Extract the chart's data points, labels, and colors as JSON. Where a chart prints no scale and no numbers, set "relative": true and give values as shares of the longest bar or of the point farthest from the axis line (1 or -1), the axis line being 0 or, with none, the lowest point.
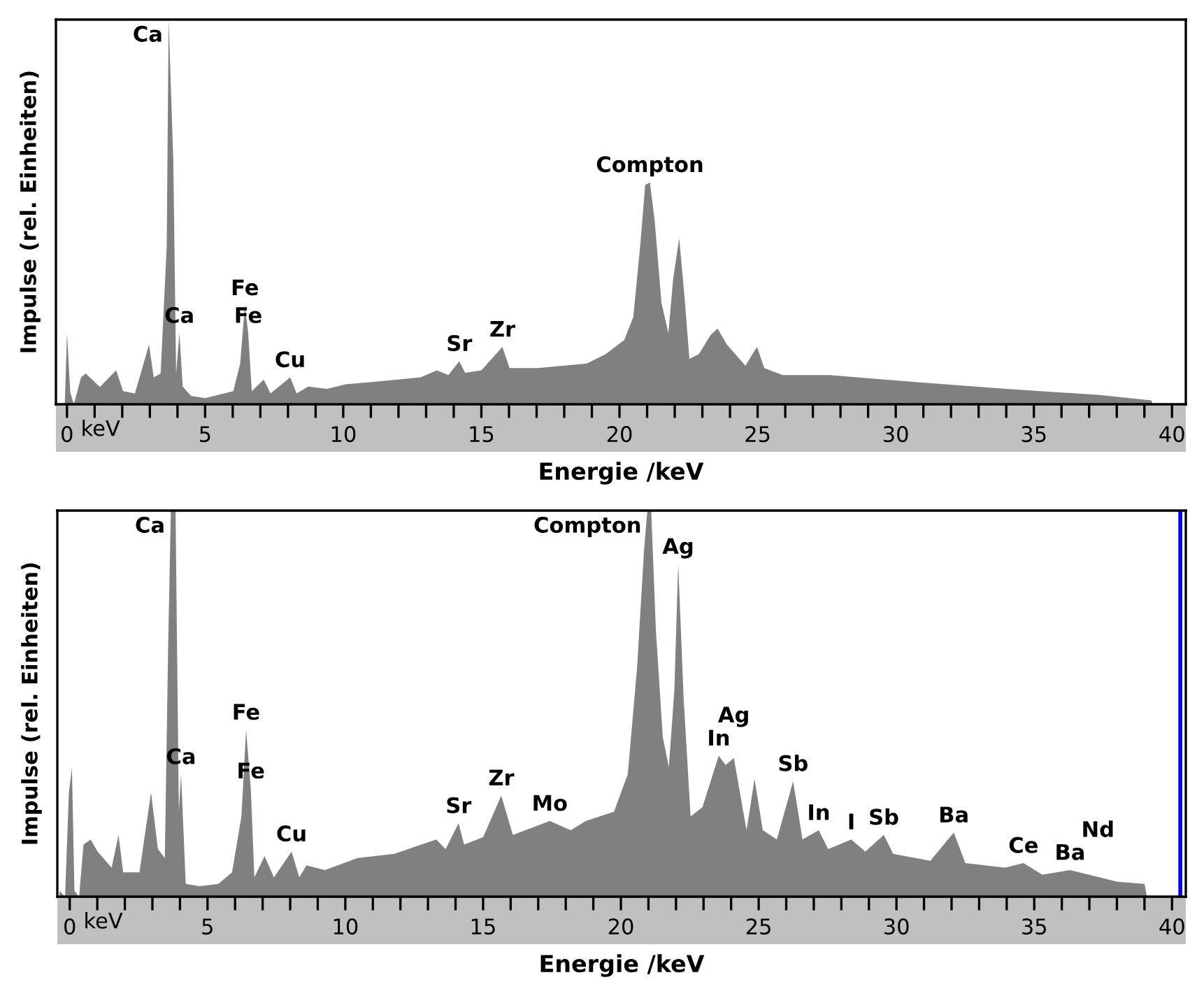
{
  "chart_data": [
    {
      "type": "area",
      "relative": true,
      "xlabel": "Energie /keV",
      "ylabel": "Impulse (rel. Einheiten)",
      "xlim": [
        -0.4,
        40.5
      ],
      "xticks": [
        0,
        {
          "value": 1,
          "label": null
        },
        {
          "value": 2,
          "label": null
        },
        {
          "value": 3,
          "label": null
        },
        {
          "value": 4,
          "label": null
        },
        5,
        {
          "value": 6,
          "label": null
        },
        {
          "value": 7,
          "label": null
        },
        {
          "value": 8,
          "label": null
        },
        {
          "value": 9,
          "label": null
        },
        10,
        {
          "value": 11,
          "label": null
        },
        {
          "value": 12,
          "label": null
        },
        {
          "value": 13,
          "label": null
        },
        {
          "value": 14,
          "label": null
        },
        15,
        {
          "value": 16,
          "label": null
        },
        {
          "value": 17,
          "label": null
        },
        {
          "value": 18,
          "label": null
        },
        {
          "value": 19,
          "label": null
        },
        20,
        {
          "value": 21,
          "label": null
        },
        {
          "value": 22,
          "label": null
        },
        {
          "value": 23,
          "label": null
        },
        {
          "value": 24,
          "label": null
        },
        25,
        {
          "value": 26,
          "label": null
        },
        {
          "value": 27,
          "label": null
        },
        {
          "value": 28,
          "label": null
        },
        {
          "value": 29,
          "label": null
        },
        30,
        {
          "value": 31,
          "label": null
        },
        {
          "value": 32,
          "label": null
        },
        {
          "value": 33,
          "label": null
        },
        {
          "value": 34,
          "label": null
        },
        35,
        {
          "value": 36,
          "label": null
        },
        {
          "value": 37,
          "label": null
        },
        {
          "value": 38,
          "label": null
        },
        {
          "value": 39,
          "label": null
        },
        40
      ],
      "series": [
        {
          "color": "#808080",
          "x": [
            -0.34,
            -0.08,
            0,
            0.12,
            0.25,
            0.51,
            0.68,
            1.19,
            1.78,
            2.03,
            2.46,
            2.97,
            3.14,
            3.39,
            3.61,
            3.68,
            3.85,
            3.95,
            4.07,
            4.19,
            4.49,
            5.0,
            6.02,
            6.27,
            6.44,
            6.56,
            6.69,
            7.12,
            7.37,
            8.08,
            8.31,
            8.73,
            9.41,
            10.08,
            11.1,
            12.8,
            13.39,
            13.81,
            14.2,
            14.41,
            15.0,
            15.76,
            16.02,
            17.03,
            18.82,
            19.49,
            20.17,
            20.5,
            20.76,
            20.93,
            21.1,
            21.27,
            21.52,
            21.77,
            21.94,
            22.16,
            22.36,
            22.53,
            22.87,
            23.29,
            23.55,
            23.89,
            24.56,
            24.81,
            24.98,
            25.24,
            25.91,
            27.6,
            30.64,
            34.0,
            37.4,
            39.26,
            39.29
          ],
          "values": [
            0,
            0,
            0.185,
            0.03,
            0,
            0.07,
            0.08,
            0.045,
            0.088,
            0.034,
            0.028,
            0.155,
            0.07,
            0.08,
            0.41,
            1.0,
            0.63,
            0.08,
            0.185,
            0.046,
            0.022,
            0.016,
            0.034,
            0.106,
            0.257,
            0.185,
            0.034,
            0.064,
            0.028,
            0.07,
            0.028,
            0.046,
            0.04,
            0.052,
            0.058,
            0.07,
            0.088,
            0.076,
            0.112,
            0.082,
            0.088,
            0.149,
            0.094,
            0.094,
            0.106,
            0.13,
            0.167,
            0.227,
            0.42,
            0.57,
            0.577,
            0.48,
            0.263,
            0.185,
            0.324,
            0.432,
            0.275,
            0.118,
            0.13,
            0.179,
            0.197,
            0.155,
            0.1,
            0.13,
            0.149,
            0.094,
            0.076,
            0.076,
            0.058,
            0.04,
            0.024,
            0.01,
            0
          ]
        }
      ],
      "annotations": [
        {
          "text": "Ca",
          "x": 3.68,
          "y": 1.0
        },
        {
          "text": "Ca",
          "x": 4.07,
          "y": 0.185
        },
        {
          "text": "Fe",
          "x": 6.44,
          "y": 0.257
        },
        {
          "text": "Fe",
          "x": 6.56,
          "y": 0.185
        },
        {
          "text": "Cu",
          "x": 8.08,
          "y": 0.07
        },
        {
          "text": "Sr",
          "x": 14.2,
          "y": 0.112
        },
        {
          "text": "Zr",
          "x": 15.76,
          "y": 0.149
        },
        {
          "text": "Compton",
          "x": 21.1,
          "y": 0.577
        },
        "keV"
      ]
    },
    {
      "type": "area",
      "relative": true,
      "xlabel": "Energie /keV",
      "ylabel": "Impulse (rel. Einheiten)",
      "xlim": [
        -0.45,
        40.5
      ],
      "xticks": [
        0,
        {
          "value": 1,
          "label": null
        },
        {
          "value": 2,
          "label": null
        },
        {
          "value": 3,
          "label": null
        },
        {
          "value": 4,
          "label": null
        },
        5,
        {
          "value": 6,
          "label": null
        },
        {
          "value": 7,
          "label": null
        },
        {
          "value": 8,
          "label": null
        },
        {
          "value": 9,
          "label": null
        },
        10,
        {
          "value": 11,
          "label": null
        },
        {
          "value": 12,
          "label": null
        },
        {
          "value": 13,
          "label": null
        },
        {
          "value": 14,
          "label": null
        },
        15,
        {
          "value": 16,
          "label": null
        },
        {
          "value": 17,
          "label": null
        },
        {
          "value": 18,
          "label": null
        },
        {
          "value": 19,
          "label": null
        },
        20,
        {
          "value": 21,
          "label": null
        },
        {
          "value": 22,
          "label": null
        },
        {
          "value": 23,
          "label": null
        },
        {
          "value": 24,
          "label": null
        },
        25,
        {
          "value": 26,
          "label": null
        },
        {
          "value": 27,
          "label": null
        },
        {
          "value": 28,
          "label": null
        },
        {
          "value": 29,
          "label": null
        },
        30,
        {
          "value": 31,
          "label": null
        },
        {
          "value": 32,
          "label": null
        },
        {
          "value": 33,
          "label": null
        },
        {
          "value": 34,
          "label": null
        },
        35,
        {
          "value": 36,
          "label": null
        },
        {
          "value": 37,
          "label": null
        },
        {
          "value": 38,
          "label": null
        },
        {
          "value": 39,
          "label": null
        },
        40
      ],
      "ref_lines": [
        {
          "axis": "x",
          "value": 40.3,
          "label": null,
          "color": "#0000ff"
        }
      ],
      "series": [
        {
          "color": "#808080",
          "x": [
            -0.37,
            -0.17,
            -0.03,
            0.08,
            0.17,
            0.34,
            0.5,
            0.76,
            1.01,
            1.52,
            1.77,
            1.94,
            2.53,
            2.95,
            3.2,
            3.45,
            3.57,
            3.67,
            3.84,
            3.96,
            4.04,
            4.21,
            4.71,
            5.39,
            5.89,
            6.23,
            6.4,
            6.57,
            6.7,
            7.07,
            7.41,
            8.05,
            8.33,
            8.59,
            9.26,
            10.44,
            11.78,
            13.3,
            13.64,
            14.11,
            14.31,
            15.0,
            15.66,
            16.08,
            17.42,
            18.18,
            18.73,
            19.75,
            20.25,
            20.59,
            20.84,
            20.96,
            21.1,
            21.27,
            21.52,
            21.74,
            21.94,
            22.08,
            22.28,
            22.53,
            22.96,
            23.55,
            23.8,
            24.1,
            24.56,
            24.85,
            25.15,
            25.66,
            26.25,
            26.59,
            27.18,
            27.52,
            28.36,
            28.87,
            29.54,
            29.88,
            31.23,
            32.08,
            32.5,
            33.94,
            34.61,
            35.29,
            36.3,
            37.31,
            37.99,
            39.0,
            39.09
          ],
          "values": [
            0.015,
            0,
            0.27,
            0.335,
            0.015,
            0,
            0.135,
            0.148,
            0.117,
            0.075,
            0.16,
            0.063,
            0.063,
            0.27,
            0.123,
            0.1,
            0.643,
            1.0,
            1.0,
            0.22,
            0.317,
            0.033,
            0.027,
            0.033,
            0.063,
            0.208,
            0.432,
            0.28,
            0.05,
            0.105,
            0.05,
            0.117,
            0.05,
            0.081,
            0.069,
            0.1,
            0.111,
            0.148,
            0.123,
            0.19,
            0.135,
            0.154,
            0.262,
            0.16,
            0.196,
            0.172,
            0.196,
            0.22,
            0.317,
            0.595,
            0.897,
            1.0,
            1.0,
            0.69,
            0.414,
            0.335,
            0.534,
            0.861,
            0.51,
            0.208,
            0.232,
            0.365,
            0.341,
            0.359,
            0.172,
            0.305,
            0.172,
            0.148,
            0.299,
            0.148,
            0.172,
            0.123,
            0.148,
            0.117,
            0.16,
            0.111,
            0.093,
            0.166,
            0.087,
            0.075,
            0.087,
            0.057,
            0.069,
            0.051,
            0.039,
            0.033,
            0
          ]
        }
      ],
      "annotations": [
        {
          "text": "Ca",
          "x": 3.67,
          "y": 1.0
        },
        {
          "text": "Ca",
          "x": 4.04,
          "y": 0.317
        },
        {
          "text": "Fe",
          "x": 6.4,
          "y": 0.432
        },
        {
          "text": "Fe",
          "x": 6.57,
          "y": 0.28
        },
        {
          "text": "Cu",
          "x": 8.05,
          "y": 0.117
        },
        {
          "text": "Sr",
          "x": 14.11,
          "y": 0.19
        },
        {
          "text": "Zr",
          "x": 15.66,
          "y": 0.262
        },
        {
          "text": "Mo",
          "x": 17.42,
          "y": 0.196
        },
        {
          "text": "Compton",
          "x": 20.96,
          "y": 1.0
        },
        {
          "text": "Ag",
          "x": 22.08,
          "y": 0.861
        },
        {
          "text": "In",
          "x": 23.55,
          "y": 0.365
        },
        {
          "text": "Ag",
          "x": 24.1,
          "y": 0.359
        },
        {
          "text": "Sb",
          "x": 26.25,
          "y": 0.299
        },
        {
          "text": "In",
          "x": 27.18,
          "y": 0.172
        },
        {
          "text": "I",
          "x": 28.36,
          "y": 0.148
        },
        {
          "text": "Sb",
          "x": 29.54,
          "y": 0.16
        },
        {
          "text": "Ba",
          "x": 32.08,
          "y": 0.166
        },
        {
          "text": "Ce",
          "x": 34.61,
          "y": 0.087
        },
        {
          "text": "Ba",
          "x": 36.3,
          "y": 0.069
        },
        {
          "text": "Nd",
          "x": 37.31,
          "y": 0.051
        },
        "keV"
      ]
    }
  ]
}
